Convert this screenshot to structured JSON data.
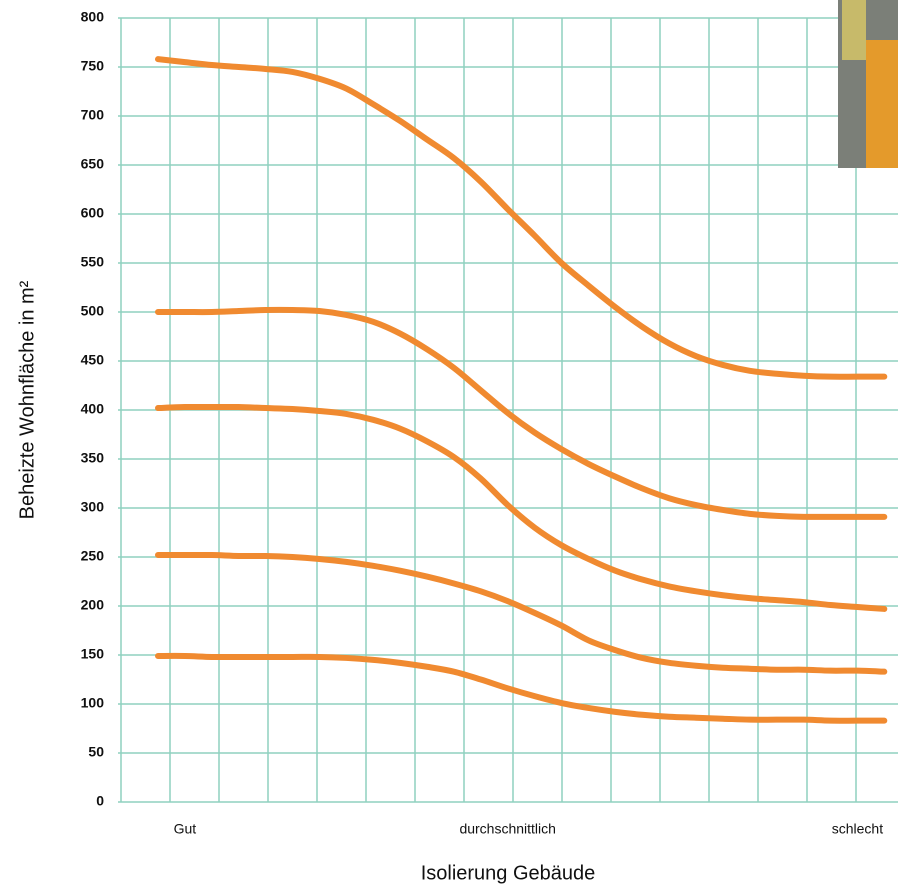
{
  "chart_data": {
    "type": "line",
    "x_label": "Isolierung Gebäude",
    "y_label": "Beheizte Wohnfläche in m²",
    "categories": [
      null,
      "Gut",
      null,
      null,
      null,
      null,
      null,
      null,
      null,
      null,
      null,
      null,
      null,
      "durchschnittlich",
      null,
      null,
      null,
      null,
      null,
      null,
      null,
      null,
      null,
      null,
      null,
      null,
      "schlecht",
      null
    ],
    "ylim": [
      0,
      800
    ],
    "yticks": [
      0,
      50,
      100,
      150,
      200,
      250,
      300,
      350,
      400,
      450,
      500,
      550,
      600,
      650,
      700,
      750,
      800
    ],
    "grid": true,
    "grid_color": "#8fd1bf",
    "series": [
      {
        "color": "#f08a30",
        "values": [
          758,
          755,
          752,
          750,
          748,
          745,
          738,
          728,
          712,
          695,
          676,
          657,
          633,
          605,
          578,
          550,
          527,
          505,
          485,
          468,
          455,
          446,
          440,
          437,
          435,
          434,
          434,
          434
        ]
      },
      {
        "color": "#f08a30",
        "values": [
          500,
          500,
          500,
          501,
          502,
          502,
          501,
          497,
          490,
          478,
          462,
          443,
          420,
          397,
          377,
          360,
          345,
          332,
          320,
          310,
          303,
          298,
          294,
          292,
          291,
          291,
          291,
          291
        ]
      },
      {
        "color": "#f08a30",
        "values": [
          402,
          403,
          403,
          403,
          402,
          401,
          399,
          396,
          390,
          381,
          368,
          352,
          330,
          303,
          280,
          262,
          248,
          236,
          227,
          220,
          215,
          211,
          208,
          206,
          204,
          201,
          199,
          197
        ]
      },
      {
        "color": "#f08a30",
        "values": [
          252,
          252,
          252,
          251,
          251,
          250,
          248,
          245,
          241,
          236,
          230,
          223,
          215,
          205,
          193,
          180,
          165,
          155,
          147,
          142,
          139,
          137,
          136,
          135,
          135,
          134,
          134,
          133
        ]
      },
      {
        "color": "#f08a30",
        "values": [
          149,
          149,
          148,
          148,
          148,
          148,
          148,
          147,
          145,
          142,
          138,
          133,
          125,
          116,
          108,
          101,
          96,
          92,
          89,
          87,
          86,
          85,
          84,
          84,
          84,
          83,
          83,
          83
        ]
      }
    ]
  }
}
